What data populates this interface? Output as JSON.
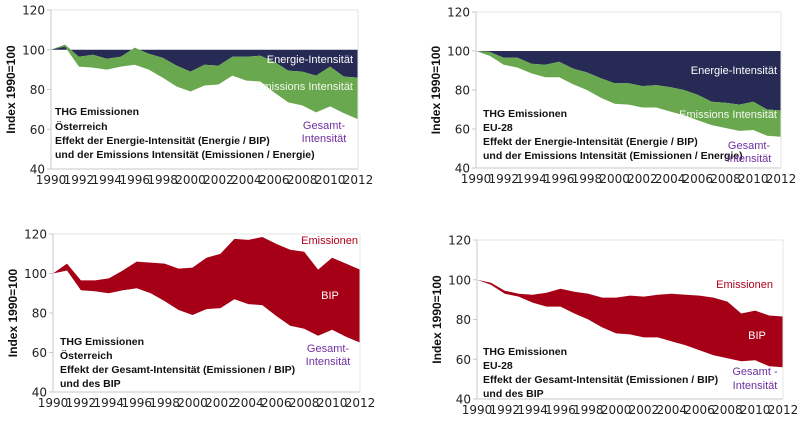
{
  "colors": {
    "energy": "#262a55",
    "emissions_intensity": "#6aa84f",
    "bip": "#a50016",
    "gesamt_label": "#7030a0",
    "emissionen_label": "#b0001a",
    "axis": "#c8c8c8"
  },
  "chart_data": [
    {
      "type": "area",
      "ylabel": "Index 1990=100",
      "ylim": [
        40,
        120
      ],
      "yticks": [
        "40",
        "60",
        "80",
        "100",
        "120"
      ],
      "xticks": [
        "1990",
        "1992",
        "1994",
        "1996",
        "1998",
        "2000",
        "2002",
        "2004",
        "2006",
        "2008",
        "2010",
        "2012"
      ],
      "x": [
        1990,
        1991,
        1992,
        1993,
        1994,
        1995,
        1996,
        1997,
        1998,
        1999,
        2000,
        2001,
        2002,
        2003,
        2004,
        2005,
        2006,
        2007,
        2008,
        2009,
        2010,
        2011,
        2012
      ],
      "title_lines": [
        "THG Emissionen",
        "Österreich",
        "Effekt der Energie-Intensität (Energie / BIP)",
        "und der Emissions Intensität (Emissionen / Energie)"
      ],
      "series": [
        {
          "name": "Energie-Intensität",
          "values": [
            100,
            102.5,
            96.5,
            97.5,
            95.5,
            96.5,
            101,
            98,
            96,
            92,
            89,
            92.5,
            92,
            96.5,
            96.5,
            97,
            94,
            89.5,
            89,
            87,
            91.5,
            86.5,
            86
          ]
        },
        {
          "name": "Emissions Intensität",
          "values": [
            100,
            101.5,
            91.5,
            91,
            90,
            91.5,
            92.5,
            90,
            86,
            81.5,
            79,
            82,
            82.5,
            87,
            84.5,
            84,
            78.5,
            73.5,
            72,
            68.5,
            71.5,
            68,
            65
          ]
        }
      ],
      "labels": {
        "energy": "Energie-Intensität",
        "emissions": "Emissions Intensität",
        "gesamt_1": "Gesamt-",
        "gesamt_2": "Intensität"
      }
    },
    {
      "type": "area",
      "ylabel": "Index 1990=100",
      "ylim": [
        40,
        120
      ],
      "yticks": [
        "40",
        "60",
        "80",
        "100",
        "120"
      ],
      "xticks": [
        "1990",
        "1992",
        "1994",
        "1996",
        "1998",
        "2000",
        "2002",
        "2004",
        "2006",
        "2008",
        "2010",
        "2012"
      ],
      "x": [
        1990,
        1991,
        1992,
        1993,
        1994,
        1995,
        1996,
        1997,
        1998,
        1999,
        2000,
        2001,
        2002,
        2003,
        2004,
        2005,
        2006,
        2007,
        2008,
        2009,
        2010,
        2011,
        2012
      ],
      "title_lines": [
        "THG Emissionen",
        "EU-28",
        "Effekt der Energie-Intensität (Energie / BIP)",
        "und der Emissions Intensität (Emissionen / Energie)"
      ],
      "series": [
        {
          "name": "Energie-Intensität",
          "values": [
            100,
            99.5,
            96.5,
            96.5,
            93.5,
            93,
            94.5,
            91,
            89,
            86,
            83.5,
            83.5,
            82,
            82.5,
            81.5,
            80,
            77.5,
            74,
            73.5,
            72.5,
            74,
            70,
            69.5
          ]
        },
        {
          "name": "Emissions Intensität",
          "values": [
            100,
            97.5,
            93,
            91.5,
            88.5,
            86.5,
            86.5,
            83,
            80,
            76,
            73,
            72.5,
            71,
            71,
            69,
            67,
            64.5,
            62,
            60.5,
            59,
            59.5,
            56.5,
            56
          ]
        }
      ],
      "labels": {
        "energy": "Energie-Intensität",
        "emissions": "Emissions Intensität",
        "gesamt_1": "Gesamt-",
        "gesamt_2": "Intensität"
      }
    },
    {
      "type": "area",
      "ylabel": "Index 1990=100",
      "ylim": [
        40,
        120
      ],
      "yticks": [
        "40",
        "60",
        "80",
        "100",
        "120"
      ],
      "xticks": [
        "1990",
        "1992",
        "1994",
        "1996",
        "1998",
        "2000",
        "2002",
        "2004",
        "2006",
        "2008",
        "2010",
        "2012"
      ],
      "x": [
        1990,
        1991,
        1992,
        1993,
        1994,
        1995,
        1996,
        1997,
        1998,
        1999,
        2000,
        2001,
        2002,
        2003,
        2004,
        2005,
        2006,
        2007,
        2008,
        2009,
        2010,
        2011,
        2012
      ],
      "title_lines": [
        "THG Emissionen",
        "Österreich",
        "Effekt der Gesamt-Intensität (Emissionen / BIP)",
        "und des BIP"
      ],
      "series": [
        {
          "name": "Emissionen",
          "values": [
            100,
            105,
            96.5,
            96.5,
            97.5,
            101.5,
            106,
            105.5,
            105,
            102.5,
            103,
            108,
            110,
            117.5,
            117,
            118.5,
            115,
            112,
            111,
            102,
            108,
            105,
            102
          ]
        },
        {
          "name": "Gesamt-Intensität",
          "values": [
            100,
            101.5,
            91.5,
            91,
            90,
            91.5,
            92.5,
            90,
            86,
            81.5,
            79,
            82,
            82.5,
            87,
            84.5,
            84,
            78.5,
            73.5,
            72,
            68.5,
            71.5,
            68,
            65
          ]
        }
      ],
      "labels": {
        "emissionen": "Emissionen",
        "bip": "BIP",
        "gesamt_1": "Gesamt-",
        "gesamt_2": "Intensität"
      }
    },
    {
      "type": "area",
      "ylabel": "Index 1990=100",
      "ylim": [
        40,
        120
      ],
      "yticks": [
        "40",
        "60",
        "80",
        "100",
        "120"
      ],
      "xticks": [
        "1990",
        "1992",
        "1994",
        "1996",
        "1998",
        "2000",
        "2002",
        "2004",
        "2006",
        "2008",
        "2010",
        "2012"
      ],
      "x": [
        1990,
        1991,
        1992,
        1993,
        1994,
        1995,
        1996,
        1997,
        1998,
        1999,
        2000,
        2001,
        2002,
        2003,
        2004,
        2005,
        2006,
        2007,
        2008,
        2009,
        2010,
        2011,
        2012
      ],
      "title_lines": [
        "THG Emissionen",
        "EU-28",
        "Effekt der Gesamt-Intensität (Emissionen / BIP)",
        "und des BIP"
      ],
      "series": [
        {
          "name": "Emissionen",
          "values": [
            100,
            98.5,
            94.5,
            93,
            92.5,
            93.5,
            95.5,
            94,
            93,
            91,
            91,
            92,
            91.5,
            92.5,
            93,
            92.5,
            92,
            91,
            89,
            83,
            84.5,
            82,
            81.5
          ]
        },
        {
          "name": "Gesamt-Intensität",
          "values": [
            100,
            97.5,
            93,
            91.5,
            88.5,
            86.5,
            86.5,
            83,
            80,
            76,
            73,
            72.5,
            71,
            71,
            69,
            67,
            64.5,
            62,
            60.5,
            59,
            59.5,
            56.5,
            56
          ]
        }
      ],
      "labels": {
        "emissionen": "Emissionen",
        "bip": "BIP",
        "gesamt_1": "Gesamt -",
        "gesamt_2": "Intensität"
      }
    }
  ]
}
